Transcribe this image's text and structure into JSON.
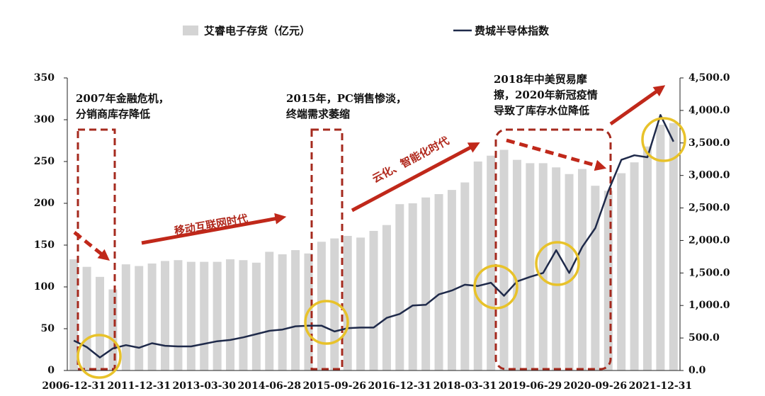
{
  "chart_data": {
    "type": "combo",
    "categories": [
      "2006-12-31",
      null,
      null,
      null,
      null,
      "2011-12-31",
      null,
      null,
      null,
      null,
      "2013-03-30",
      null,
      null,
      null,
      null,
      "2014-06-28",
      null,
      null,
      null,
      null,
      "2015-09-26",
      null,
      null,
      null,
      null,
      "2016-12-31",
      null,
      null,
      null,
      null,
      "2018-03-31",
      null,
      null,
      null,
      null,
      "2019-06-29",
      null,
      null,
      null,
      null,
      "2020-09-26",
      null,
      null,
      null,
      null,
      "2021-12-31",
      null
    ],
    "series": [
      {
        "name": "艾睿电子存货（亿元）",
        "type": "bar",
        "color": "#d4d4d4",
        "values": [
          133,
          124,
          112,
          97,
          127,
          125,
          128,
          131,
          132,
          130,
          130,
          130,
          133,
          132,
          129,
          142,
          139,
          144,
          140,
          154,
          158,
          161,
          159,
          167,
          174,
          199,
          200,
          207,
          211,
          216,
          225,
          250,
          257,
          264,
          252,
          248,
          248,
          243,
          235,
          241,
          221,
          215,
          236,
          249,
          268,
          294,
          296
        ]
      },
      {
        "name": "费城半导体指数",
        "type": "line",
        "axis": "y2",
        "color": "#1f2a4a",
        "values": [
          460,
          360,
          200,
          340,
          390,
          350,
          420,
          380,
          370,
          370,
          410,
          450,
          470,
          510,
          560,
          610,
          630,
          680,
          690,
          690,
          600,
          650,
          660,
          660,
          810,
          870,
          1000,
          1010,
          1170,
          1230,
          1320,
          1300,
          1350,
          1150,
          1370,
          1440,
          1500,
          1850,
          1500,
          1900,
          2190,
          2760,
          3240,
          3310,
          3280,
          3930,
          3520
        ]
      }
    ],
    "ylim": [
      0,
      350
    ],
    "yticks": [
      0,
      50,
      100,
      150,
      200,
      250,
      300,
      350
    ],
    "y2lim": [
      0,
      4500
    ],
    "y2ticks": [
      {
        "value": 0,
        "label": "0.0"
      },
      {
        "value": 500,
        "label": "500.0"
      },
      {
        "value": 1000,
        "label": "1,000.0"
      },
      {
        "value": 1500,
        "label": "1,500.0"
      },
      {
        "value": 2000,
        "label": "2,000.0"
      },
      {
        "value": 2500,
        "label": "2,500.0"
      },
      {
        "value": 3000,
        "label": "3,000.0"
      },
      {
        "value": 3500,
        "label": "3,500.0"
      },
      {
        "value": 4000,
        "label": "4,000.0"
      },
      {
        "value": 4500,
        "label": "4,500.0"
      }
    ],
    "annotations": [
      [
        "2007年金融危机，",
        "分销商库存降低"
      ],
      [
        "2015年，PC销售惨淡，",
        "终端需求萎缩"
      ],
      [
        "2018年中美贸易摩",
        "擦，2020年新冠疫情",
        "导致了库存水位降低"
      ]
    ],
    "era_labels": [
      "移动互联网时代",
      "云化、智能化时代"
    ]
  }
}
